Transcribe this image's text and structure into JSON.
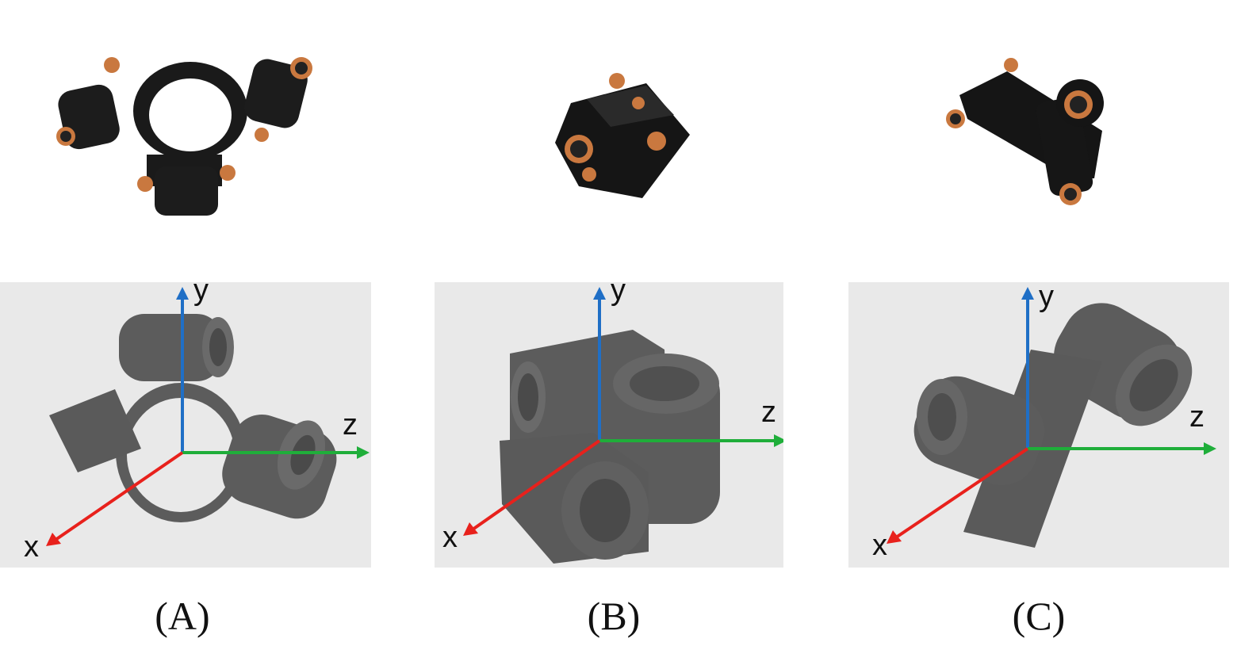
{
  "panels": [
    {
      "caption": "(A)",
      "axes": {
        "x": "x",
        "y": "y",
        "z": "z"
      }
    },
    {
      "caption": "(B)",
      "axes": {
        "x": "x",
        "y": "y",
        "z": "z"
      }
    },
    {
      "caption": "(C)",
      "axes": {
        "x": "x",
        "y": "y",
        "z": "z"
      }
    }
  ],
  "colors": {
    "x_axis": "#e8211c",
    "y_axis": "#1f6fc6",
    "z_axis": "#1fae3a",
    "render_bg": "#e9e9e9",
    "part_gray": "#5c5c5c",
    "photo_part": "#151515",
    "copper": "#c9783f"
  }
}
